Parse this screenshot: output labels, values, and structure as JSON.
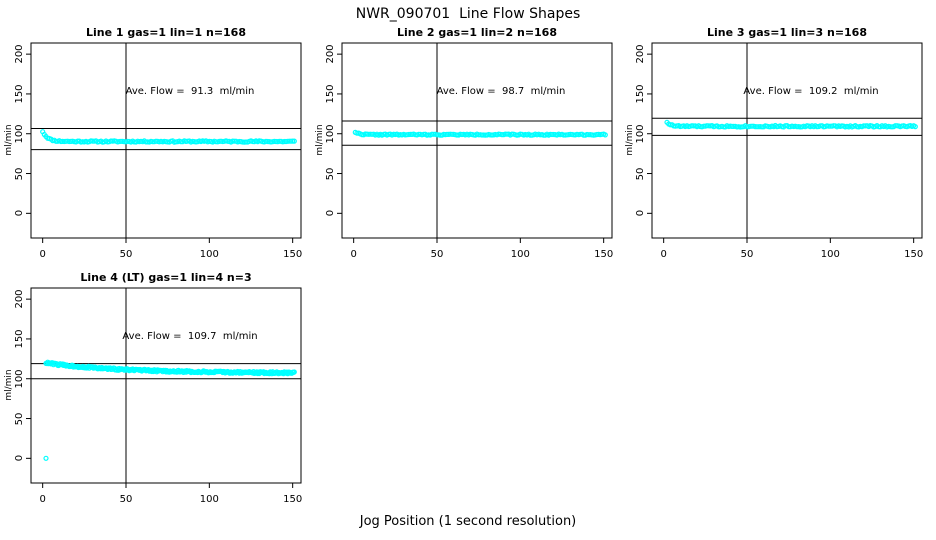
{
  "page": {
    "title": "NWR_090701  Line Flow Shapes",
    "xlabel": "Jog Position (1 second resolution)",
    "background": "#ffffff",
    "text_color": "#000000",
    "marker_color": "#00ffff"
  },
  "chart_data": [
    {
      "type": "scatter",
      "title": "Line 1 gas=1 lin=1 n=168",
      "annotation": "Ave. Flow =  91.3  ml/min",
      "ave_flow_ml_min": 91.3,
      "n": 168,
      "ylabel": "ml/min",
      "x_ticks": [
        0,
        50,
        100,
        150
      ],
      "y_ticks": [
        0,
        50,
        100,
        150,
        200
      ],
      "xlim": [
        -7,
        155
      ],
      "ylim": [
        -31,
        214
      ],
      "grid": false,
      "vline_x": 50,
      "hlines": [
        106.5,
        80
      ],
      "marker_color": "#00ffff",
      "series_model": {
        "start": 103,
        "settle": 90.3,
        "tau": 3,
        "noise": 0.8,
        "x_start": 0,
        "x_end": 151,
        "step": 1,
        "seed": 11
      },
      "extra_points": []
    },
    {
      "type": "scatter",
      "title": "Line 2 gas=1 lin=2 n=168",
      "annotation": "Ave. Flow =  98.7  ml/min",
      "ave_flow_ml_min": 98.7,
      "n": 168,
      "ylabel": "ml/min",
      "x_ticks": [
        0,
        50,
        100,
        150
      ],
      "y_ticks": [
        0,
        50,
        100,
        150,
        200
      ],
      "xlim": [
        -7,
        155
      ],
      "ylim": [
        -31,
        214
      ],
      "grid": false,
      "vline_x": 50,
      "hlines": [
        116,
        85.5
      ],
      "marker_color": "#00ffff",
      "series_model": {
        "start": 103.5,
        "settle": 98.9,
        "tau": 2.5,
        "noise": 0.7,
        "x_start": 1,
        "x_end": 151,
        "step": 1,
        "seed": 22
      },
      "extra_points": []
    },
    {
      "type": "scatter",
      "title": "Line 3 gas=1 lin=3 n=168",
      "annotation": "Ave. Flow =  109.2  ml/min",
      "ave_flow_ml_min": 109.2,
      "n": 168,
      "ylabel": "ml/min",
      "x_ticks": [
        0,
        50,
        100,
        150
      ],
      "y_ticks": [
        0,
        50,
        100,
        150,
        200
      ],
      "xlim": [
        -7,
        155
      ],
      "ylim": [
        -31,
        214
      ],
      "grid": false,
      "vline_x": 50,
      "hlines": [
        119.5,
        98
      ],
      "marker_color": "#00ffff",
      "series_model": {
        "start": 124,
        "settle": 109.4,
        "tau": 2,
        "noise": 0.9,
        "x_start": 2,
        "x_end": 151,
        "step": 1,
        "seed": 33
      },
      "extra_points": []
    },
    {
      "type": "scatter",
      "title": "Line 4 (LT) gas=1 lin=4 n=3",
      "annotation": "Ave. Flow =  109.7  ml/min",
      "ave_flow_ml_min": 109.7,
      "n": 3,
      "ylabel": "ml/min",
      "x_ticks": [
        0,
        50,
        100,
        150
      ],
      "y_ticks": [
        0,
        50,
        100,
        150,
        200
      ],
      "xlim": [
        -7,
        155
      ],
      "ylim": [
        -31,
        214
      ],
      "grid": false,
      "vline_x": 50,
      "hlines": [
        119,
        100
      ],
      "marker_color": "#00ffff",
      "series_model": {
        "start": 120.5,
        "settle": 107,
        "tau": 45,
        "noise": 1.3,
        "x_start": 2,
        "x_end": 151,
        "step": 0.5,
        "seed": 44
      },
      "extra_points": [
        [
          2,
          0
        ]
      ]
    }
  ]
}
